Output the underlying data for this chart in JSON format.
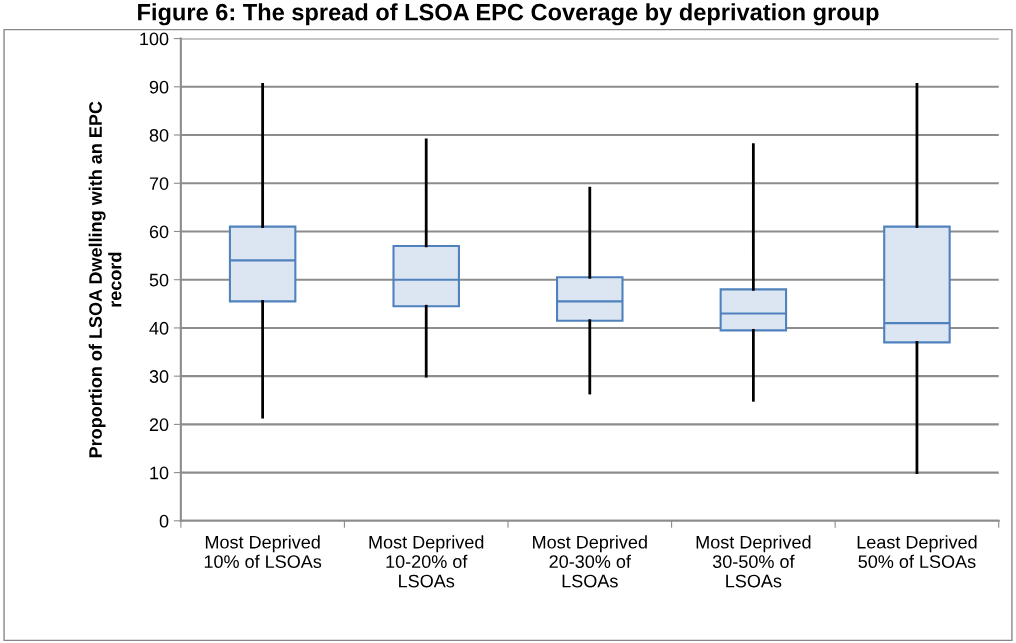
{
  "chart_data": {
    "type": "box",
    "title": "Figure 6: The spread of LSOA EPC Coverage by deprivation group",
    "ylabel": "Proportion of LSOA Dwelling with an EPC\nrecord",
    "categories": [
      "Most Deprived\n10% of LSOAs",
      "Most Deprived\n10-20% of\nLSOAs",
      "Most Deprived\n20-30% of\nLSOAs",
      "Most Deprived\n30-50% of\nLSOAs",
      "Least Deprived\n50% of LSOAs"
    ],
    "boxes": [
      {
        "low": 21.5,
        "q1": 45.5,
        "median": 54,
        "q3": 61,
        "high": 90.5
      },
      {
        "low": 30,
        "q1": 44.5,
        "median": 50,
        "q3": 57,
        "high": 79
      },
      {
        "low": 26.5,
        "q1": 41.5,
        "median": 45.5,
        "q3": 50.5,
        "high": 69
      },
      {
        "low": 25,
        "q1": 39.5,
        "median": 43,
        "q3": 48,
        "high": 78
      },
      {
        "low": 10,
        "q1": 37,
        "median": 41,
        "q3": 61,
        "high": 90.5
      }
    ],
    "color": "#4f81bd",
    "ylim": [
      0,
      100
    ],
    "yticks": [
      0,
      10,
      20,
      30,
      40,
      50,
      60,
      70,
      80,
      90,
      100
    ],
    "grid": "y"
  }
}
